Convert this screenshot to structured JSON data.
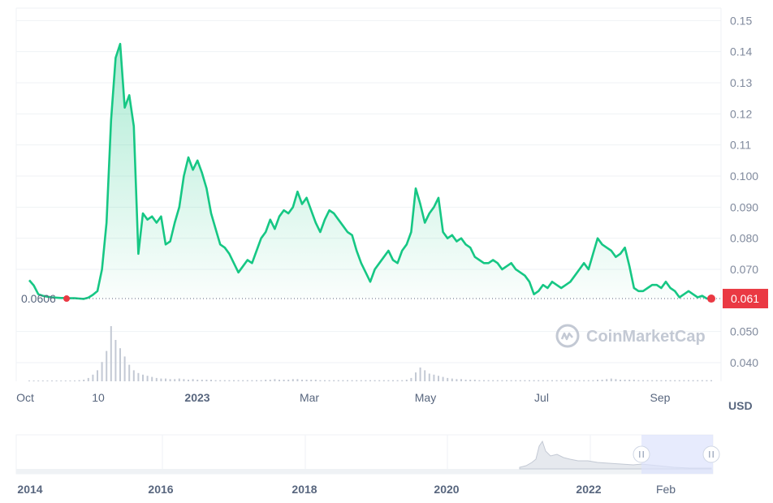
{
  "chart_data": {
    "type": "area",
    "unit": "USD",
    "y_ticks": [
      "0.15",
      "0.14",
      "0.13",
      "0.12",
      "0.11",
      "0.100",
      "0.090",
      "0.080",
      "0.070",
      "0.061",
      "0.050",
      "0.040"
    ],
    "ylim": [
      0.034,
      0.154
    ],
    "x_ticks": [
      "Oct",
      "10",
      "2023",
      "Mar",
      "May",
      "Jul",
      "Sep"
    ],
    "x_ticks_bold": [
      "2023"
    ],
    "start_price_label": "0.0606",
    "start_price": 0.0606,
    "current_price_label": "0.061",
    "current_price": 0.0606,
    "series": [
      {
        "line_color": "#16c784",
        "x": [
          0,
          1,
          2,
          3,
          4,
          5,
          6,
          7,
          8,
          9,
          10,
          11,
          12,
          13,
          14,
          15,
          16,
          17,
          18,
          19,
          20,
          21,
          22,
          23,
          24,
          25,
          26,
          27,
          28,
          29,
          30,
          31,
          32,
          33,
          34,
          35,
          36,
          37,
          38,
          39,
          40,
          41,
          42,
          43,
          44,
          45,
          46,
          47,
          48,
          49,
          50,
          51,
          52,
          53,
          54,
          55,
          56,
          57,
          58,
          59,
          60,
          61,
          62,
          63,
          64,
          65,
          66,
          67,
          68,
          69,
          70,
          71,
          72,
          73,
          74,
          75,
          76,
          77,
          78,
          79,
          80,
          81,
          82,
          83,
          84,
          85,
          86,
          87,
          88,
          89,
          90,
          91,
          92,
          93,
          94,
          95,
          96,
          97,
          98,
          99,
          100,
          101,
          102,
          103,
          104,
          105,
          106,
          107,
          108,
          109,
          110,
          111,
          112,
          113,
          114,
          115,
          116,
          117,
          118,
          119,
          120,
          121,
          122,
          123,
          124,
          125,
          126,
          127,
          128,
          129,
          130,
          131,
          132,
          133,
          134,
          135,
          136,
          137,
          138,
          139,
          140,
          141,
          142,
          143,
          144,
          145,
          146,
          147,
          148,
          149,
          150
        ],
        "values": [
          0.0665,
          0.0648,
          0.062,
          0.0615,
          0.0612,
          0.061,
          0.0609,
          0.0608,
          0.0608,
          0.0607,
          0.0607,
          0.0606,
          0.0605,
          0.0609,
          0.0618,
          0.063,
          0.07,
          0.085,
          0.118,
          0.138,
          0.1425,
          0.122,
          0.126,
          0.116,
          0.075,
          0.088,
          0.086,
          0.087,
          0.085,
          0.087,
          0.078,
          0.079,
          0.085,
          0.09,
          0.1,
          0.106,
          0.102,
          0.105,
          0.101,
          0.096,
          0.088,
          0.083,
          0.078,
          0.077,
          0.075,
          0.072,
          0.069,
          0.071,
          0.073,
          0.072,
          0.076,
          0.08,
          0.082,
          0.086,
          0.083,
          0.087,
          0.089,
          0.088,
          0.09,
          0.095,
          0.091,
          0.093,
          0.089,
          0.085,
          0.082,
          0.086,
          0.089,
          0.088,
          0.086,
          0.084,
          0.082,
          0.081,
          0.076,
          0.072,
          0.069,
          0.066,
          0.07,
          0.072,
          0.074,
          0.076,
          0.073,
          0.072,
          0.076,
          0.078,
          0.082,
          0.096,
          0.091,
          0.085,
          0.088,
          0.09,
          0.093,
          0.082,
          0.08,
          0.081,
          0.079,
          0.08,
          0.078,
          0.077,
          0.074,
          0.073,
          0.072,
          0.072,
          0.073,
          0.072,
          0.07,
          0.071,
          0.072,
          0.07,
          0.069,
          0.068,
          0.066,
          0.062,
          0.063,
          0.065,
          0.064,
          0.066,
          0.065,
          0.064,
          0.065,
          0.066,
          0.068,
          0.07,
          0.072,
          0.07,
          0.075,
          0.08,
          0.078,
          0.077,
          0.076,
          0.074,
          0.075,
          0.077,
          0.071,
          0.064,
          0.063,
          0.063,
          0.064,
          0.065,
          0.065,
          0.064,
          0.066,
          0.064,
          0.063,
          0.061,
          0.062,
          0.063,
          0.062,
          0.061,
          0.0615,
          0.0606,
          0.0606
        ]
      }
    ],
    "volume": [
      0.01,
      0.01,
      0.01,
      0.01,
      0.01,
      0.01,
      0.01,
      0.01,
      0.01,
      0.01,
      0.01,
      0.02,
      0.03,
      0.06,
      0.12,
      0.2,
      0.35,
      0.55,
      1.0,
      0.75,
      0.6,
      0.45,
      0.3,
      0.2,
      0.15,
      0.12,
      0.1,
      0.08,
      0.06,
      0.05,
      0.05,
      0.04,
      0.04,
      0.05,
      0.04,
      0.03,
      0.04,
      0.03,
      0.03,
      0.03,
      0.03,
      0.02,
      0.02,
      0.02,
      0.02,
      0.02,
      0.02,
      0.02,
      0.02,
      0.02,
      0.02,
      0.02,
      0.03,
      0.03,
      0.04,
      0.03,
      0.03,
      0.03,
      0.04,
      0.04,
      0.03,
      0.03,
      0.03,
      0.03,
      0.02,
      0.02,
      0.02,
      0.02,
      0.02,
      0.02,
      0.02,
      0.02,
      0.02,
      0.02,
      0.02,
      0.02,
      0.02,
      0.02,
      0.02,
      0.02,
      0.02,
      0.02,
      0.02,
      0.03,
      0.06,
      0.16,
      0.25,
      0.2,
      0.14,
      0.12,
      0.1,
      0.08,
      0.06,
      0.05,
      0.04,
      0.04,
      0.03,
      0.03,
      0.03,
      0.02,
      0.02,
      0.02,
      0.02,
      0.02,
      0.02,
      0.02,
      0.02,
      0.02,
      0.02,
      0.02,
      0.02,
      0.02,
      0.02,
      0.02,
      0.02,
      0.02,
      0.02,
      0.02,
      0.02,
      0.02,
      0.02,
      0.02,
      0.02,
      0.02,
      0.02,
      0.03,
      0.03,
      0.04,
      0.05,
      0.04,
      0.03,
      0.03,
      0.03,
      0.03,
      0.02,
      0.02,
      0.02,
      0.02,
      0.02,
      0.02,
      0.02,
      0.02,
      0.02,
      0.02,
      0.02,
      0.02,
      0.02,
      0.02,
      0.02,
      0.02,
      0.02
    ]
  },
  "watermark": {
    "brand": "CoinMarketCap"
  },
  "navigator": {
    "labels": [
      "2014",
      "2016",
      "2018",
      "2020",
      "2022",
      "Feb"
    ],
    "handle_left_icon": "pause-bars-icon",
    "handle_right_icon": "pause-bars-icon"
  },
  "colors": {
    "line": "#16c784",
    "current_badge": "#ea3943",
    "grid": "#eff2f5",
    "axis_text": "#808a9d",
    "volume": "#c3c9d4",
    "nav_selection": "#dde3fc"
  }
}
